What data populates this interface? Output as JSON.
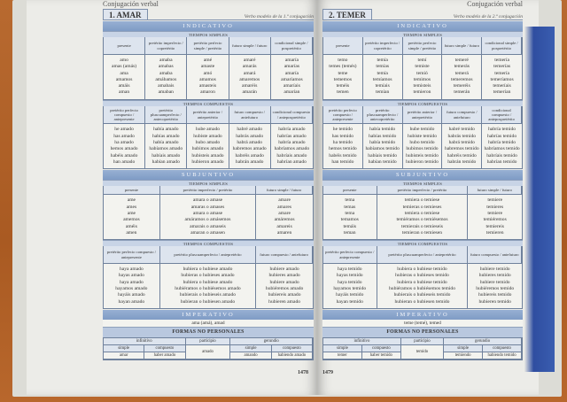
{
  "pages": [
    {
      "running_head": "Conjugación verbal",
      "title": "1. AMAR",
      "subtitle": "Verbo modelo de la 1.ª conjugación",
      "page_number": "1478",
      "sections": [
        {
          "type": "band",
          "text": "INDICATIVO"
        },
        {
          "type": "sub",
          "text": "TIEMPOS SIMPLES"
        },
        {
          "type": "table",
          "cols": [
            {
              "h": "presente",
              "forms": [
                "amo",
                "amas (amás)",
                "ama",
                "amamos",
                "amáis",
                "aman"
              ]
            },
            {
              "h": "pretérito imperfecto / copretérito",
              "forms": [
                "amaba",
                "amabas",
                "amaba",
                "amábamos",
                "amabais",
                "amaban"
              ]
            },
            {
              "h": "pretérito perfecto simple / pretérito",
              "forms": [
                "amé",
                "amaste",
                "amó",
                "amamos",
                "amasteis",
                "amaron"
              ]
            },
            {
              "h": "futuro simple / futuro",
              "forms": [
                "amaré",
                "amarás",
                "amará",
                "amaremos",
                "amaréis",
                "amarán"
              ]
            },
            {
              "h": "condicional simple / pospretérito",
              "forms": [
                "amaría",
                "amarías",
                "amaría",
                "amaríamos",
                "amaríais",
                "amarían"
              ]
            }
          ]
        },
        {
          "type": "sub",
          "text": "TIEMPOS COMPUESTOS"
        },
        {
          "type": "table",
          "cols": [
            {
              "h": "pretérito perfecto compuesto / antepresente",
              "forms": [
                "he amado",
                "has amado",
                "ha amado",
                "hemos amado",
                "habéis amado",
                "han amado"
              ]
            },
            {
              "h": "pretérito pluscuamperfecto / antecopretérito",
              "forms": [
                "había amado",
                "habías amado",
                "había amado",
                "habíamos amado",
                "habíais amado",
                "habían amado"
              ]
            },
            {
              "h": "pretérito anterior / antepretérito",
              "forms": [
                "hube amado",
                "hubiste amado",
                "hubo amado",
                "hubimos amado",
                "hubisteis amado",
                "hubieron amado"
              ]
            },
            {
              "h": "futuro compuesto / antefuturo",
              "forms": [
                "habré amado",
                "habrás amado",
                "habrá amado",
                "habremos amado",
                "habréis amado",
                "habrán amado"
              ]
            },
            {
              "h": "condicional compuesto / antepospretérito",
              "forms": [
                "habría amado",
                "habrías amado",
                "habría amado",
                "habríamos amado",
                "habríais amado",
                "habrían amado"
              ]
            }
          ]
        },
        {
          "type": "band",
          "text": "SUBJUNTIVO"
        },
        {
          "type": "sub",
          "text": "TIEMPOS SIMPLES"
        },
        {
          "type": "table",
          "short": true,
          "cols": [
            {
              "h": "presente",
              "forms": [
                "ame",
                "ames",
                "ame",
                "amemos",
                "améis",
                "amen"
              ]
            },
            {
              "h": "pretérito imperfecto / pretérito",
              "forms": [
                "amara o amase",
                "amaras o amases",
                "amara o amase",
                "amáramos o amásemos",
                "amarais o amaseis",
                "amaran o amasen"
              ]
            },
            {
              "h": "futuro simple / futuro",
              "forms": [
                "amare",
                "amares",
                "amare",
                "amáremos",
                "amareis",
                "amaren"
              ]
            }
          ]
        },
        {
          "type": "sub",
          "text": "TIEMPOS COMPUESTOS"
        },
        {
          "type": "table",
          "cols": [
            {
              "h": "pretérito perfecto compuesto / antepresente",
              "forms": [
                "haya amado",
                "hayas amado",
                "haya amado",
                "hayamos amado",
                "hayáis amado",
                "hayan amado"
              ]
            },
            {
              "h": "pretérito pluscuamperfecto / antepretérito",
              "forms": [
                "hubiera o hubiese amado",
                "hubieras o hubieses amado",
                "hubiera o hubiese amado",
                "hubiéramos o hubiésemos amado",
                "hubierais o hubieseis amado",
                "hubieran o hubiesen amado"
              ]
            },
            {
              "h": "futuro compuesto / antefuturo",
              "forms": [
                "hubiere amado",
                "hubieres amado",
                "hubiere amado",
                "hubiéremos amado",
                "hubiereis amado",
                "hubieren amado"
              ]
            }
          ]
        },
        {
          "type": "band",
          "text": "IMPERATIVO"
        },
        {
          "type": "line",
          "text": "ama (amá), amad"
        },
        {
          "type": "formas",
          "title": "FORMAS NO PERSONALES",
          "infinitivo": "infinitivo",
          "participio": "participio",
          "gerundio": "gerundio",
          "simple": "simple",
          "compuesto": "compuesto",
          "inf_simple": "amar",
          "inf_compuesto": "haber amado",
          "part_value": "amado",
          "ger_simple": "amando",
          "ger_compuesto": "habiendo amado"
        }
      ]
    },
    {
      "running_head": "Conjugación verbal",
      "title": "2. TEMER",
      "subtitle": "Verbo modelo de la 2.ª conjugación",
      "page_number": "1479",
      "sections": [
        {
          "type": "band",
          "text": "INDICATIVO"
        },
        {
          "type": "sub",
          "text": "TIEMPOS SIMPLES"
        },
        {
          "type": "table",
          "cols": [
            {
              "h": "presente",
              "forms": [
                "temo",
                "temes (temés)",
                "teme",
                "tememos",
                "teméis",
                "temen"
              ]
            },
            {
              "h": "pretérito imperfecto / copretérito",
              "forms": [
                "temía",
                "temías",
                "temía",
                "temíamos",
                "temíais",
                "temían"
              ]
            },
            {
              "h": "pretérito perfecto simple / pretérito",
              "forms": [
                "temí",
                "temiste",
                "temió",
                "temimos",
                "temisteis",
                "temieron"
              ]
            },
            {
              "h": "futuro simple / futuro",
              "forms": [
                "temeré",
                "temerás",
                "temerá",
                "temeremos",
                "temeréis",
                "temerán"
              ]
            },
            {
              "h": "condicional simple / pospretérito",
              "forms": [
                "temería",
                "temerías",
                "temería",
                "temeríamos",
                "temeríais",
                "temerían"
              ]
            }
          ]
        },
        {
          "type": "sub",
          "text": "TIEMPOS COMPUESTOS"
        },
        {
          "type": "table",
          "cols": [
            {
              "h": "pretérito perfecto compuesto / antepresente",
              "forms": [
                "he temido",
                "has temido",
                "ha temido",
                "hemos temido",
                "habéis temido",
                "han temido"
              ]
            },
            {
              "h": "pretérito pluscuamperfecto / antecopretérito",
              "forms": [
                "había temido",
                "habías temido",
                "había temido",
                "habíamos temido",
                "habíais temido",
                "habían temido"
              ]
            },
            {
              "h": "pretérito anterior / antepretérito",
              "forms": [
                "hube temido",
                "hubiste temido",
                "hubo temido",
                "hubimos temido",
                "hubisteis temido",
                "hubieron temido"
              ]
            },
            {
              "h": "futuro compuesto / antefuturo",
              "forms": [
                "habré temido",
                "habrás temido",
                "habrá temido",
                "habremos temido",
                "habréis temido",
                "habrán temido"
              ]
            },
            {
              "h": "condicional compuesto / antepospretérito",
              "forms": [
                "habría temido",
                "habrías temido",
                "habría temido",
                "habríamos temido",
                "habríais temido",
                "habrían temido"
              ]
            }
          ]
        },
        {
          "type": "band",
          "text": "SUBJUNTIVO"
        },
        {
          "type": "sub",
          "text": "TIEMPOS SIMPLES"
        },
        {
          "type": "table",
          "short": true,
          "cols": [
            {
              "h": "presente",
              "forms": [
                "tema",
                "temas",
                "tema",
                "temamos",
                "temáis",
                "teman"
              ]
            },
            {
              "h": "pretérito imperfecto / pretérito",
              "forms": [
                "temiera o temiese",
                "temieras o temieses",
                "temiera o temiese",
                "temiéramos o temiésemos",
                "temierais o temieseis",
                "temieran o temiesen"
              ]
            },
            {
              "h": "futuro simple / futuro",
              "forms": [
                "temiere",
                "temieres",
                "temiere",
                "temiéremos",
                "temiereis",
                "temieren"
              ]
            }
          ]
        },
        {
          "type": "sub",
          "text": "TIEMPOS COMPUESTOS"
        },
        {
          "type": "table",
          "cols": [
            {
              "h": "pretérito perfecto compuesto / antepresente",
              "forms": [
                "haya temido",
                "hayas temido",
                "haya temido",
                "hayamos temido",
                "hayáis temido",
                "hayan temido"
              ]
            },
            {
              "h": "pretérito pluscuamperfecto / antepretérito",
              "forms": [
                "hubiera o hubiese temido",
                "hubieras o hubieses temido",
                "hubiera o hubiese temido",
                "hubiéramos o hubiésemos temido",
                "hubierais o hubieseis temido",
                "hubieran o hubiesen temido"
              ]
            },
            {
              "h": "futuro compuesto / antefuturo",
              "forms": [
                "hubiere temido",
                "hubieres temido",
                "hubiere temido",
                "hubiéremos temido",
                "hubiereis temido",
                "hubieren temido"
              ]
            }
          ]
        },
        {
          "type": "band",
          "text": "IMPERATIVO"
        },
        {
          "type": "line",
          "text": "teme (temé), temed"
        },
        {
          "type": "formas",
          "title": "FORMAS NO PERSONALES",
          "infinitivo": "infinitivo",
          "participio": "participio",
          "gerundio": "gerundio",
          "simple": "simple",
          "compuesto": "compuesto",
          "inf_simple": "temer",
          "inf_compuesto": "haber temido",
          "part_value": "temido",
          "ger_simple": "temiendo",
          "ger_compuesto": "habiendo temido"
        }
      ]
    }
  ],
  "colors": {
    "band": "#8aa4cc",
    "subband": "#c8d4e6",
    "header_cell": "#dde4ee",
    "page": "#ecece8",
    "book_edge": "#3355a8",
    "table": "#f3f3ef"
  }
}
